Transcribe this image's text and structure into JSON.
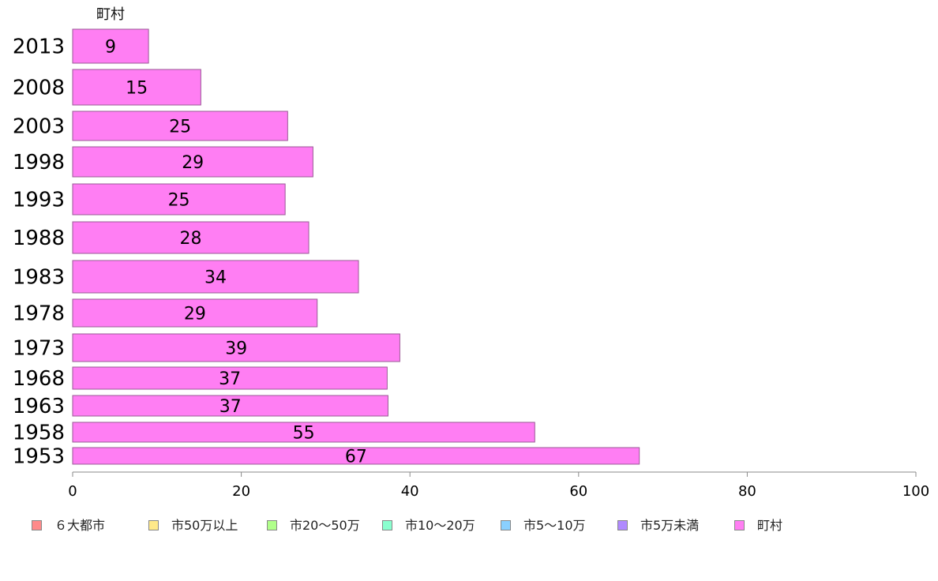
{
  "chart_data": {
    "type": "bar",
    "orientation": "horizontal",
    "categories": [
      "2013",
      "2008",
      "2003",
      "1998",
      "1993",
      "1988",
      "1983",
      "1978",
      "1973",
      "1968",
      "1963",
      "1958",
      "1953"
    ],
    "series": [
      {
        "name": "町村",
        "color": "#ff7ef3",
        "values": [
          9.0,
          15.2,
          25.5,
          28.5,
          25.2,
          28.0,
          33.9,
          29.0,
          38.8,
          37.3,
          37.4,
          54.8,
          67.2
        ],
        "labels": [
          "9",
          "15",
          "25",
          "29",
          "25",
          "28",
          "34",
          "29",
          "39",
          "37",
          "37",
          "55",
          "67"
        ]
      }
    ],
    "series_title": "町村",
    "xlim": [
      0,
      100
    ],
    "xticks": [
      "0",
      "20",
      "40",
      "60",
      "80",
      "100"
    ],
    "grid": false,
    "legend_position": "bottom",
    "legend": [
      {
        "label": "６大都市",
        "color": "#ff8a8a"
      },
      {
        "label": "市50万以上",
        "color": "#ffe98a"
      },
      {
        "label": "市20〜50万",
        "color": "#b0ff8a"
      },
      {
        "label": "市10〜20万",
        "color": "#8affcf"
      },
      {
        "label": "市5〜10万",
        "color": "#8ad0ff"
      },
      {
        "label": "市5万未満",
        "color": "#b08aff"
      },
      {
        "label": "町村",
        "color": "#ff7ef3"
      }
    ]
  }
}
